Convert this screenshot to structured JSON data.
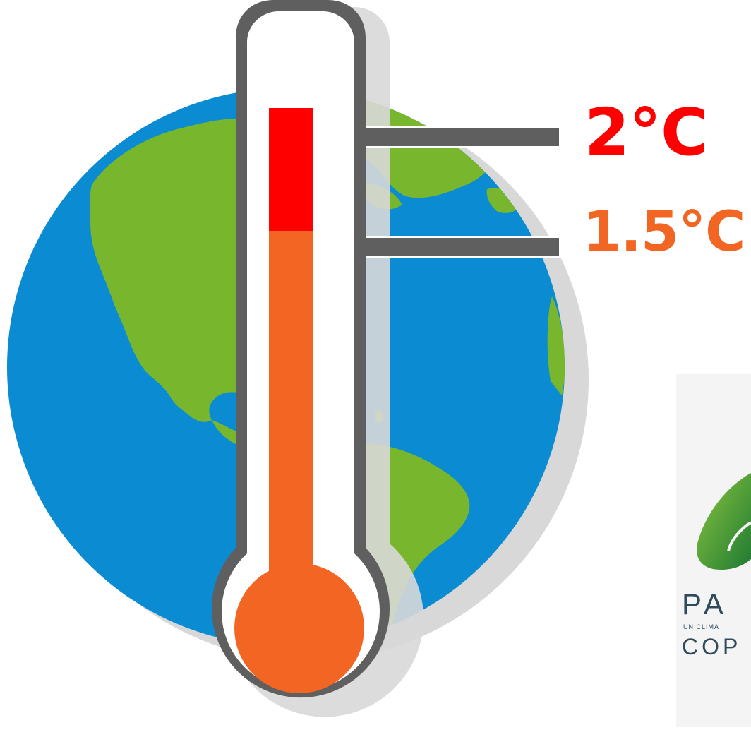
{
  "thermometer": {
    "upper_marker_label": "2°C",
    "lower_marker_label": "1.5°C"
  },
  "logo": {
    "line1": "PA",
    "line2": "UN CLIMA",
    "line3": "COP"
  },
  "colors": {
    "label_2c": "#ff0000",
    "label_15c": "#f26522",
    "mercury_red": "#ff0000",
    "mercury_orange": "#f26522",
    "ocean": "#0a8bd2",
    "land": "#77b62d",
    "thermometer_outline": "#5f5f5f",
    "marker_bar": "#5f5f5f",
    "shadow": "#d8d8d8",
    "logo_leaf": "#3a9a2e",
    "logo_text": "#2e4a5c"
  },
  "icons": {
    "globe": "globe-icon",
    "thermometer": "thermometer-icon",
    "leaf": "leaf-icon"
  }
}
